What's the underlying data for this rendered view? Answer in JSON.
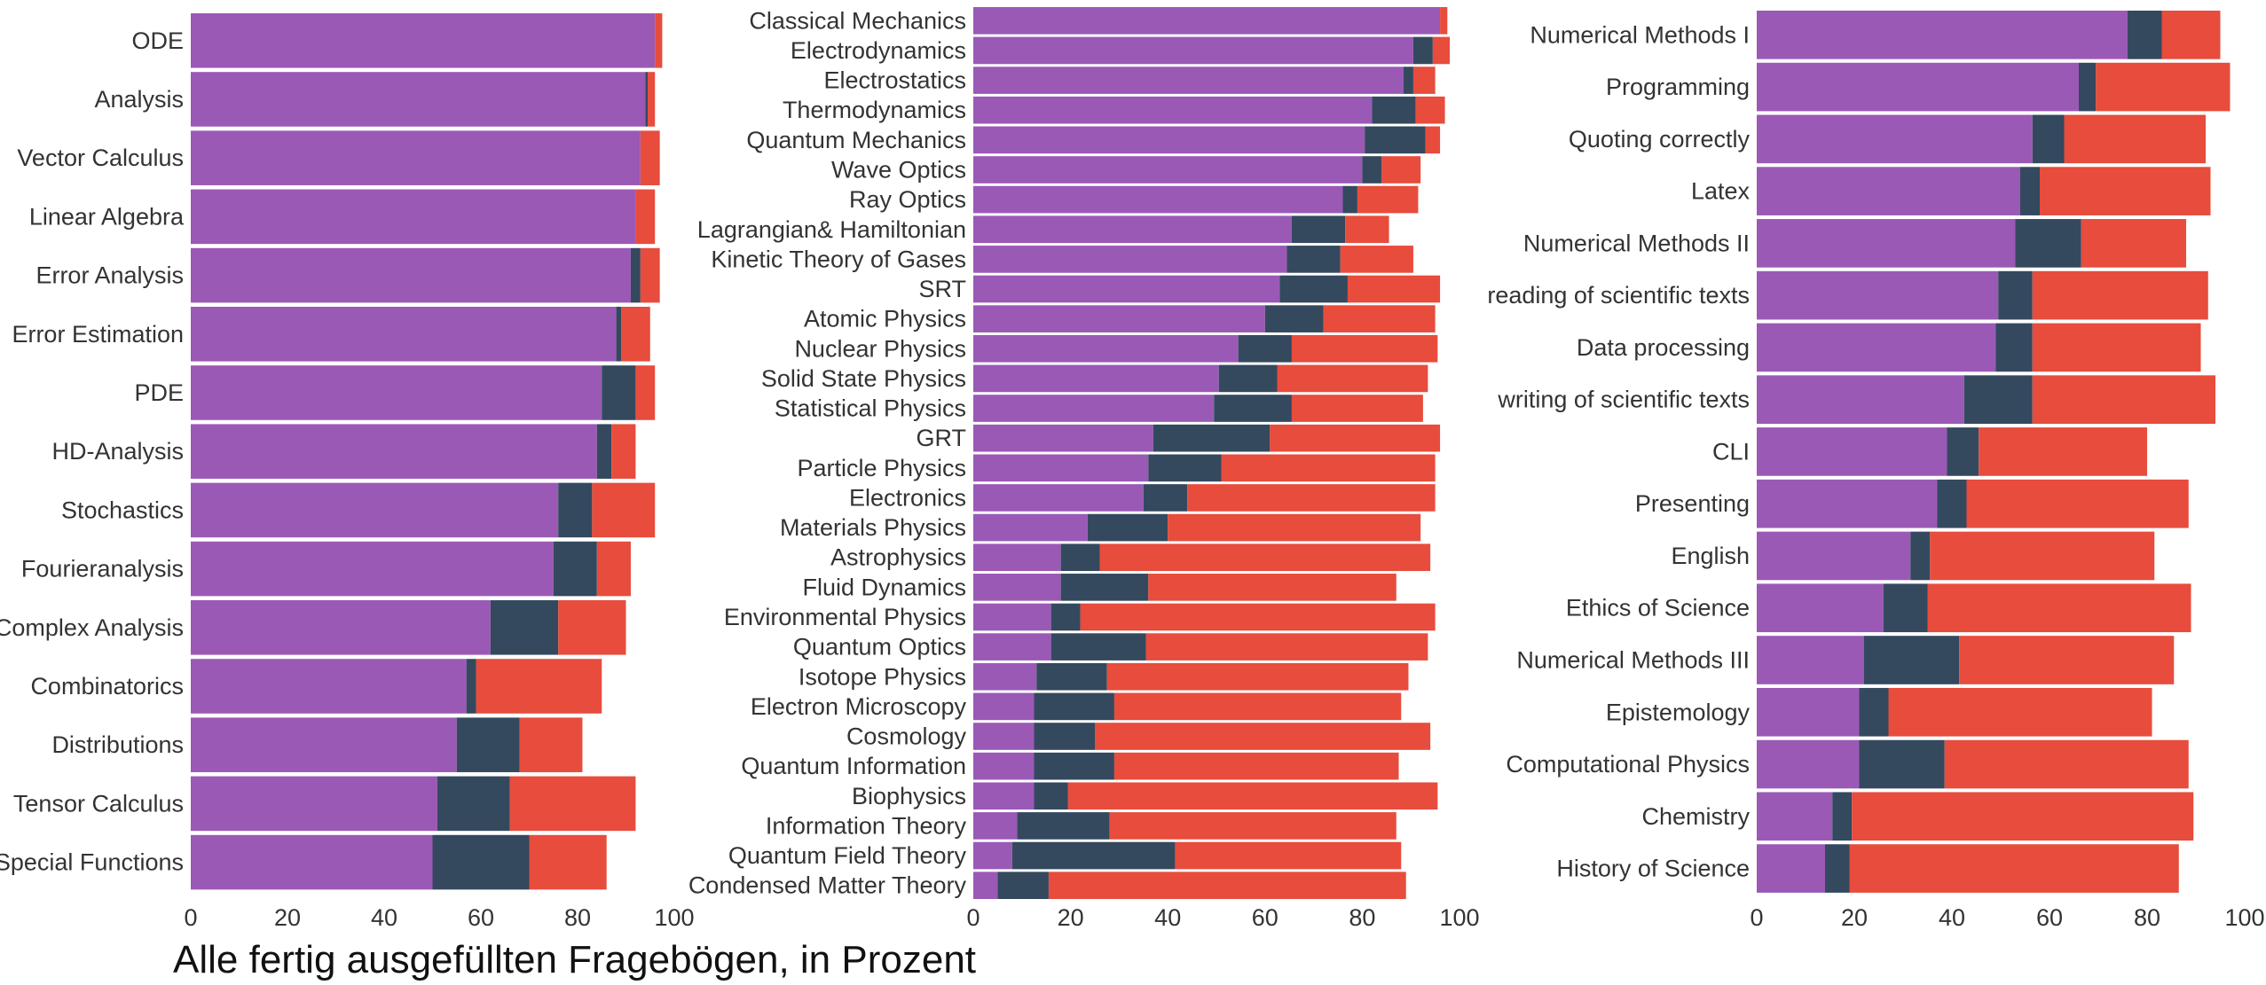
{
  "caption": "Alle fertig ausgefüllten Fragebögen, in Prozent",
  "colors": {
    "seg1": "#9b59b6",
    "seg2": "#34495e",
    "seg3": "#e74c3c"
  },
  "chart_data": [
    {
      "type": "bar",
      "orientation": "horizontal",
      "stacked": true,
      "title": "",
      "xlabel": "",
      "ylabel": "",
      "xlim": [
        0,
        100
      ],
      "xticks": [
        0,
        20,
        40,
        60,
        80,
        100
      ],
      "categories": [
        "ODE",
        "Analysis",
        "Vector Calculus",
        "Linear Algebra",
        "Error Analysis",
        "Error Estimation",
        "PDE",
        "HD-Analysis",
        "Stochastics",
        "Fourieranalysis",
        "Complex Analysis",
        "Combinatorics",
        "Distributions",
        "Tensor Calculus",
        "Special Functions"
      ],
      "series": [
        {
          "values": [
            96,
            94,
            93,
            92,
            91,
            88,
            85,
            84,
            76,
            75,
            62,
            57,
            55,
            51,
            50
          ]
        },
        {
          "values": [
            0,
            0.5,
            0,
            0,
            2,
            1,
            7,
            3,
            7,
            9,
            14,
            2,
            13,
            15,
            20
          ]
        },
        {
          "values": [
            1.5,
            1.5,
            4,
            4,
            4,
            6,
            4,
            5,
            13,
            7,
            14,
            26,
            13,
            26,
            16
          ]
        }
      ]
    },
    {
      "type": "bar",
      "orientation": "horizontal",
      "stacked": true,
      "title": "",
      "xlabel": "",
      "ylabel": "",
      "xlim": [
        0,
        100
      ],
      "xticks": [
        0,
        20,
        40,
        60,
        80,
        100
      ],
      "categories": [
        "Classical Mechanics",
        "Electrodynamics",
        "Electrostatics",
        "Thermodynamics",
        "Quantum Mechanics",
        "Wave Optics",
        "Ray Optics",
        "Lagrangian&  Hamiltonian",
        "Kinetic Theory of Gases",
        "SRT",
        "Atomic Physics",
        "Nuclear Physics",
        "Solid State Physics",
        "Statistical Physics",
        "GRT",
        "Particle Physics",
        "Electronics",
        "Materials Physics",
        "Astrophysics",
        "Fluid Dynamics",
        "Environmental Physics",
        "Quantum Optics",
        "Isotope Physics",
        "Electron Microscopy",
        "Cosmology",
        "Quantum Information",
        "Biophysics",
        "Information Theory",
        "Quantum Field Theory",
        "Condensed Matter Theory"
      ],
      "series": [
        {
          "values": [
            96,
            90.5,
            88.5,
            82,
            80.5,
            80,
            76,
            65.5,
            64.5,
            63,
            60,
            54.5,
            50.5,
            49.5,
            37,
            36,
            35,
            23.5,
            18,
            18,
            16,
            16,
            13,
            12.5,
            12.5,
            12.5,
            12.5,
            9,
            8,
            5
          ]
        },
        {
          "values": [
            0,
            4,
            2,
            9,
            12.5,
            4,
            3,
            11,
            11,
            14,
            12,
            11,
            12,
            16,
            24,
            15,
            9,
            16.5,
            8,
            18,
            6,
            19.5,
            14.5,
            16.5,
            12.5,
            16.5,
            7,
            19,
            33.5,
            10.5
          ]
        },
        {
          "values": [
            1.5,
            3.5,
            4.5,
            6,
            3,
            8,
            12.5,
            9,
            15,
            19,
            23,
            30,
            31,
            27,
            35,
            44,
            51,
            52,
            68,
            51,
            73,
            58,
            62,
            59,
            69,
            58.5,
            76,
            59,
            46.5,
            73.5
          ]
        }
      ]
    },
    {
      "type": "bar",
      "orientation": "horizontal",
      "stacked": true,
      "title": "",
      "xlabel": "",
      "ylabel": "",
      "xlim": [
        0,
        100
      ],
      "xticks": [
        0,
        20,
        40,
        60,
        80,
        100
      ],
      "categories": [
        "Numerical Methods I",
        "Programming",
        "Quoting correctly",
        "Latex",
        "Numerical Methods II",
        "reading of scientific texts",
        "Data processing",
        "writing of scientific texts",
        "CLI",
        "Presenting",
        "English",
        "Ethics of Science",
        "Numerical Methods III",
        "Epistemology",
        "Computational Physics",
        "Chemistry",
        "History of Science"
      ],
      "series": [
        {
          "values": [
            76,
            66,
            56.5,
            54,
            53,
            49.5,
            49,
            42.5,
            39,
            37,
            31.5,
            26,
            22,
            21,
            21,
            15.5,
            14
          ]
        },
        {
          "values": [
            7,
            3.5,
            6.5,
            4,
            13.5,
            7,
            7.5,
            14,
            6.5,
            6,
            4,
            9,
            19.5,
            6,
            17.5,
            4,
            5
          ]
        },
        {
          "values": [
            12,
            27.5,
            29,
            35,
            21.5,
            36,
            34.5,
            37.5,
            34.5,
            45.5,
            46,
            54,
            44,
            54,
            50,
            70,
            67.5
          ]
        }
      ]
    }
  ]
}
